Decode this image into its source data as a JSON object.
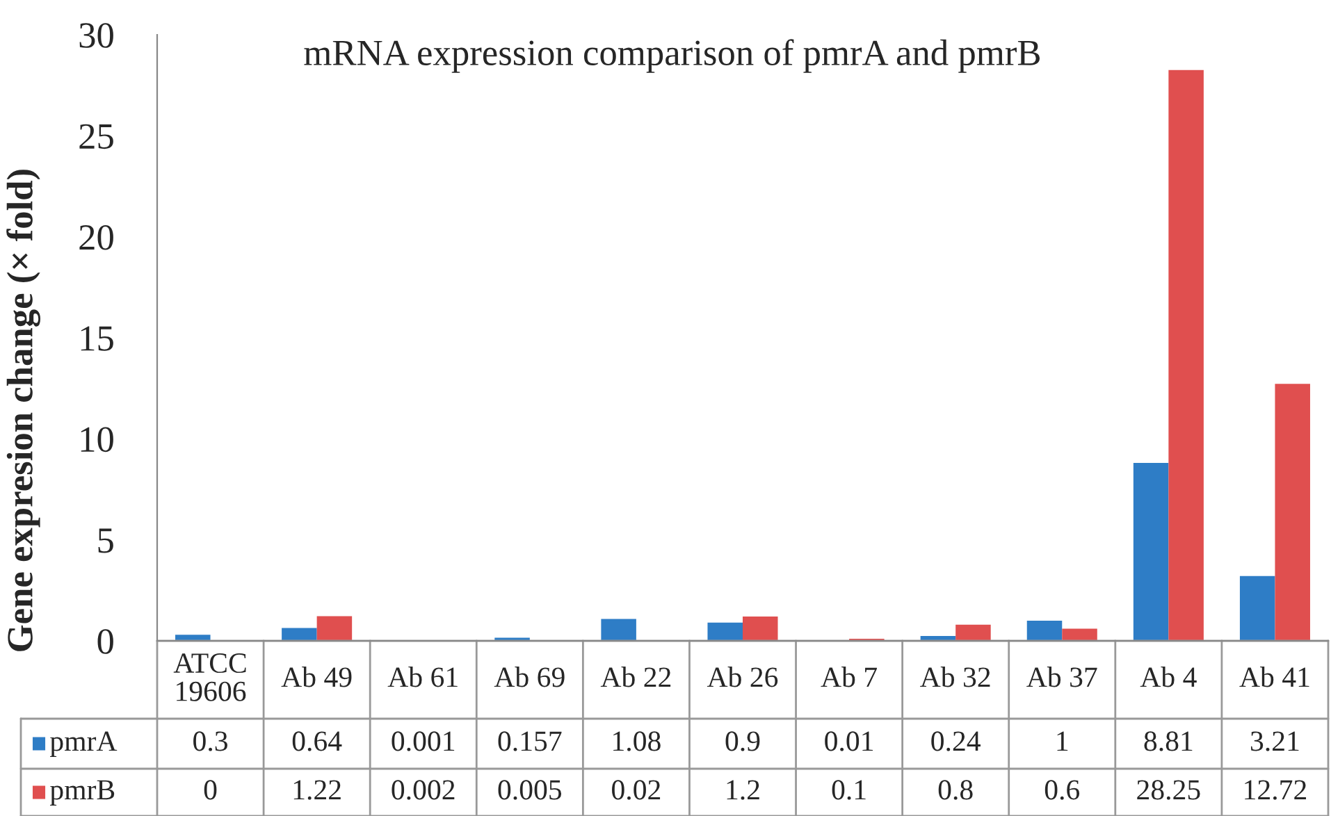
{
  "chart_data": {
    "type": "bar",
    "title": "mRNA expression comparison of pmrA and pmrB",
    "ylabel": "Gene expresion change (× fold)",
    "categories": [
      "ATCC\n19606",
      "Ab 49",
      "Ab 61",
      "Ab 69",
      "Ab 22",
      "Ab 26",
      "Ab 7",
      "Ab 32",
      "Ab 37",
      "Ab 4",
      "Ab 41"
    ],
    "series": [
      {
        "name": "pmrA",
        "color": "#2e7dc6",
        "values": [
          0.3,
          0.64,
          0.001,
          0.157,
          1.08,
          0.9,
          0.01,
          0.24,
          1,
          8.81,
          3.21
        ]
      },
      {
        "name": "pmrB",
        "color": "#e04f4f",
        "values": [
          0,
          1.22,
          0.002,
          0.005,
          0.02,
          1.2,
          0.1,
          0.8,
          0.6,
          28.25,
          12.72
        ]
      }
    ],
    "ylim": [
      0,
      30
    ],
    "yticks": [
      0,
      5,
      10,
      15,
      20,
      25,
      30
    ],
    "grid": false,
    "legend": "bottom",
    "data_labels": true
  }
}
